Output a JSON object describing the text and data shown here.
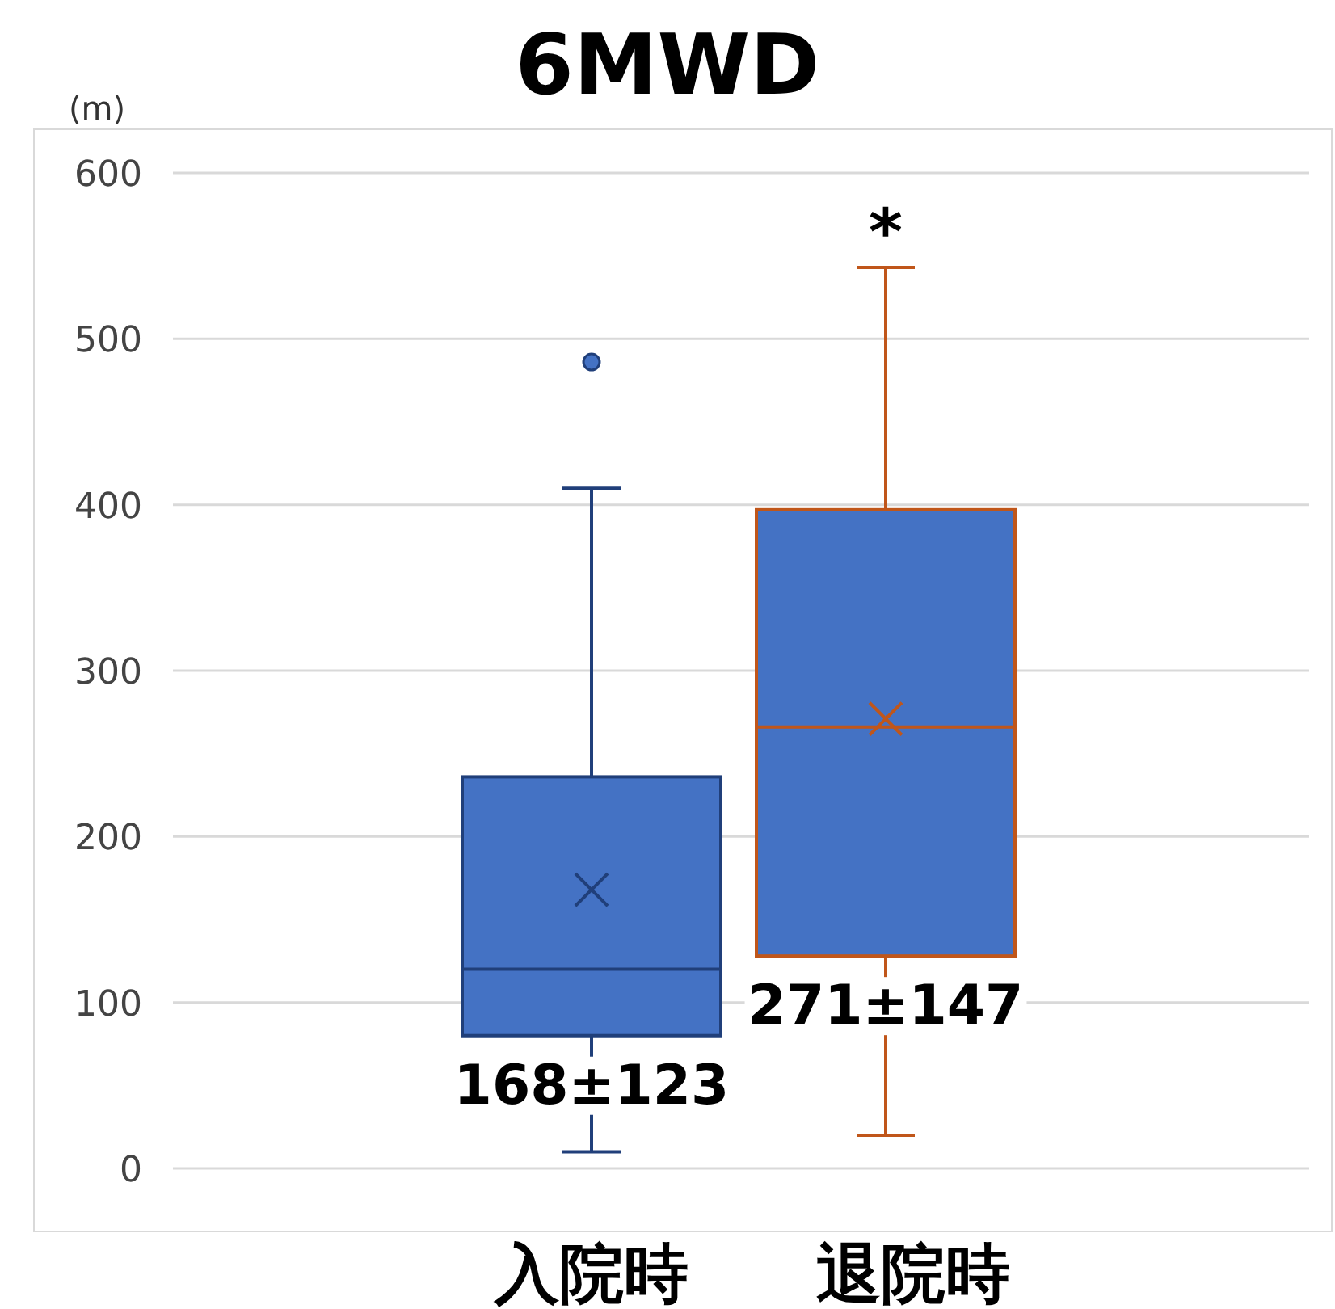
{
  "chart_data": {
    "type": "box",
    "title": "6MWD",
    "ylabel": "(m)",
    "categories": [
      "入院時",
      "退院時"
    ],
    "series": [
      {
        "color": "#4472c4",
        "boxes": [
          {
            "low": 10,
            "q1": 80,
            "median": 120,
            "q3": 236,
            "high": 410,
            "mean": 168,
            "outliers": [
              486
            ]
          },
          {
            "low": 20,
            "q1": 128,
            "median": 266,
            "q3": 397,
            "high": 543,
            "mean": 271
          }
        ]
      }
    ],
    "colors": [
      "#203f7a",
      "#c0561a"
    ],
    "ylim": [
      0,
      600
    ],
    "yticks": [
      0,
      100,
      200,
      300,
      400,
      500,
      600
    ],
    "grid": "y",
    "annotations": [
      "168±123",
      "271±147",
      "*"
    ]
  }
}
